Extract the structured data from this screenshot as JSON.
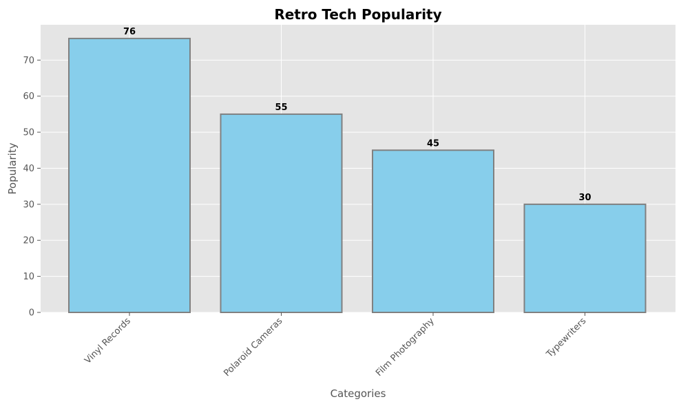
{
  "chart_data": {
    "type": "bar",
    "title": "Retro Tech Popularity",
    "xlabel": "Categories",
    "ylabel": "Popularity",
    "categories": [
      "Vinyl Records",
      "Polaroid Cameras",
      "Film Photography",
      "Typewriters"
    ],
    "values": [
      76,
      55,
      45,
      30
    ],
    "ylim": [
      0,
      79.8
    ],
    "yticks": [
      0,
      10,
      20,
      30,
      40,
      50,
      60,
      70
    ],
    "grid": true,
    "colors": {
      "bar_fill": "#87ceeb",
      "bar_edge": "#808080",
      "plot_background": "#e5e5e5",
      "grid": "#ffffff"
    }
  }
}
